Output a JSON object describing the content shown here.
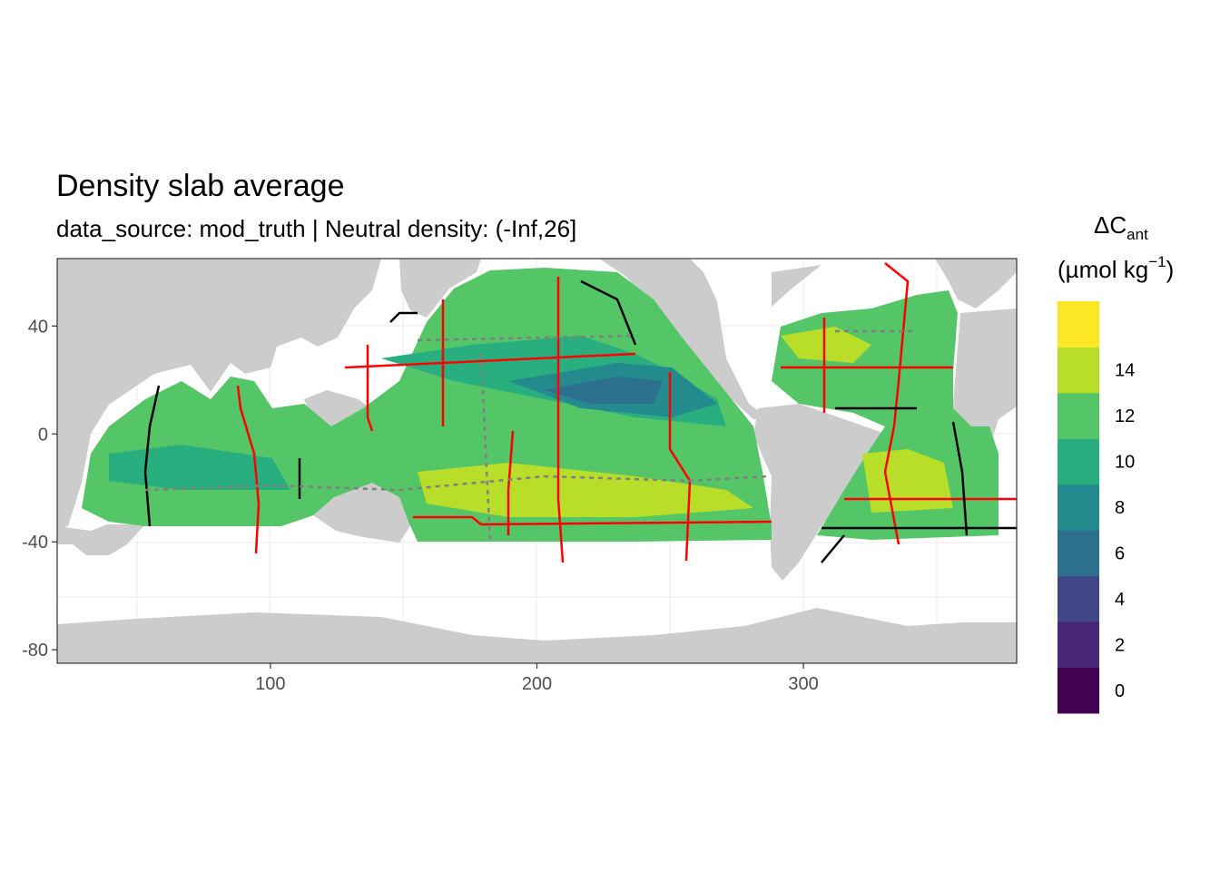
{
  "title": "Density slab average",
  "subtitle": "data_source: mod_truth | Neutral density: (-Inf,26]",
  "map": {
    "x_ticks": [
      {
        "value": 100,
        "label": "100"
      },
      {
        "value": 200,
        "label": "200"
      },
      {
        "value": 300,
        "label": "300"
      }
    ],
    "y_ticks": [
      {
        "value": 40,
        "label": "40"
      },
      {
        "value": 0,
        "label": "0"
      },
      {
        "value": -40,
        "label": "-40"
      },
      {
        "value": -80,
        "label": "-80"
      }
    ],
    "xlim": [
      20,
      380
    ],
    "ylim": [
      -85,
      65
    ],
    "land_color": "#cccccc",
    "background_color": "#ffffff",
    "track_colors": [
      "#ff0000",
      "#000000",
      "#808080"
    ]
  },
  "legend": {
    "title_main": "ΔC",
    "title_sub": "ant",
    "unit_text": "(µmol kg",
    "unit_sup": "−1",
    "unit_close": ")",
    "bins": [
      {
        "color": "#440154"
      },
      {
        "color": "#482677"
      },
      {
        "color": "#3F4788"
      },
      {
        "color": "#2D708E"
      },
      {
        "color": "#238A8D"
      },
      {
        "color": "#29AF7F"
      },
      {
        "color": "#55C667"
      },
      {
        "color": "#B8DE29"
      },
      {
        "color": "#FDE725"
      }
    ],
    "labels": [
      "0",
      "2",
      "4",
      "6",
      "8",
      "10",
      "12",
      "14"
    ]
  }
}
